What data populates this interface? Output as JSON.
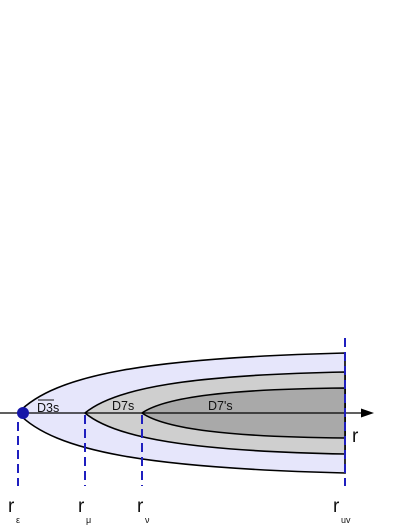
{
  "diagram": {
    "colors": {
      "outer_fill": "#e6e6fb",
      "middle_fill": "#cfcfcf",
      "inner_fill": "#a9a9a9",
      "outline": "#000000",
      "dash": "#1f1fbf",
      "dot": "#1515a8"
    },
    "region_labels": {
      "d3bar": {
        "main": "D3s",
        "bar": "true"
      },
      "d7s": "D7s",
      "d7prime": "D7's"
    },
    "axis": {
      "label": "r"
    },
    "markers": [
      {
        "main": "r",
        "sub": "ε"
      },
      {
        "main": "r",
        "sub": "μ"
      },
      {
        "main": "r",
        "sub": "ν"
      },
      {
        "main": "r",
        "sub": "uv"
      }
    ]
  }
}
